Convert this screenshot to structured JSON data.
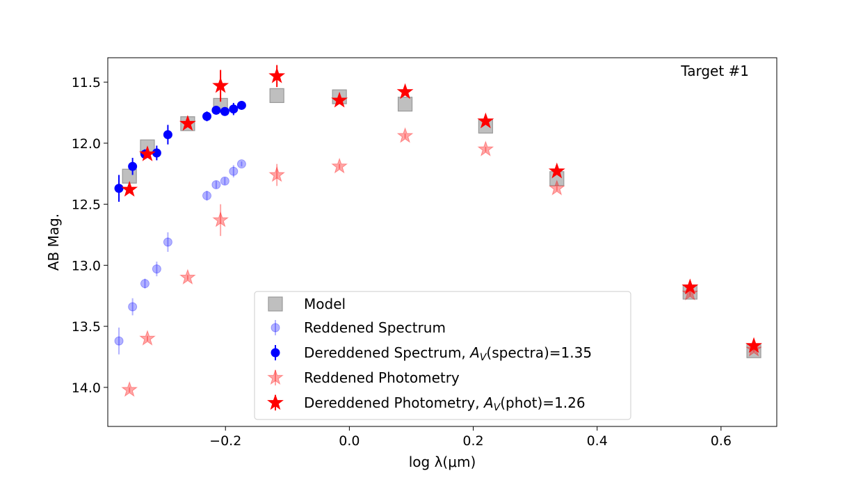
{
  "chart_data": {
    "type": "scatter",
    "annotation": "Target #1",
    "xlabel": "log λ(μm)",
    "ylabel": "AB Mag.",
    "xlim": [
      -0.39,
      0.69
    ],
    "ylim": [
      14.32,
      11.3
    ],
    "y_inverted": true,
    "xticks": [
      -0.2,
      0.0,
      0.2,
      0.4,
      0.6
    ],
    "xtick_labels": [
      "−0.2",
      "0.0",
      "0.2",
      "0.4",
      "0.6"
    ],
    "yticks": [
      11.5,
      12.0,
      12.5,
      13.0,
      13.5,
      14.0
    ],
    "ytick_labels": [
      "11.5",
      "12.0",
      "12.5",
      "13.0",
      "13.5",
      "14.0"
    ],
    "legend_position": "lower-center",
    "series": [
      {
        "name": "Model",
        "legend_label": "Model",
        "marker": "square",
        "color": "#999999",
        "points": [
          {
            "x": -0.355,
            "y": 12.27
          },
          {
            "x": -0.326,
            "y": 12.03
          },
          {
            "x": -0.261,
            "y": 11.84
          },
          {
            "x": -0.208,
            "y": 11.69
          },
          {
            "x": -0.117,
            "y": 11.61
          },
          {
            "x": -0.016,
            "y": 11.62
          },
          {
            "x": 0.09,
            "y": 11.68
          },
          {
            "x": 0.22,
            "y": 11.86
          },
          {
            "x": 0.335,
            "y": 12.29
          },
          {
            "x": 0.55,
            "y": 13.22
          },
          {
            "x": 0.653,
            "y": 13.7
          }
        ]
      },
      {
        "name": "Reddened Spectrum",
        "legend_label": "Reddened Spectrum",
        "marker": "circle",
        "color": "#0000ff",
        "alpha": 0.3,
        "points": [
          {
            "x": -0.372,
            "y": 13.62,
            "err": 0.11
          },
          {
            "x": -0.35,
            "y": 13.34,
            "err": 0.07
          },
          {
            "x": -0.33,
            "y": 13.15,
            "err": 0.04
          },
          {
            "x": -0.311,
            "y": 13.03,
            "err": 0.06
          },
          {
            "x": -0.293,
            "y": 12.81,
            "err": 0.08
          },
          {
            "x": -0.23,
            "y": 12.43,
            "err": 0.04
          },
          {
            "x": -0.215,
            "y": 12.34,
            "err": 0.03
          },
          {
            "x": -0.201,
            "y": 12.31,
            "err": 0.03
          },
          {
            "x": -0.187,
            "y": 12.23,
            "err": 0.05
          },
          {
            "x": -0.174,
            "y": 12.17,
            "err": 0.02
          }
        ]
      },
      {
        "name": "Dereddened Spectrum",
        "legend_label": "Dereddened Spectrum, ",
        "legend_math_sub": "V",
        "legend_suffix": "(spectra)=1.35",
        "marker": "circle",
        "color": "#0000ff",
        "alpha": 1.0,
        "points": [
          {
            "x": -0.372,
            "y": 12.37,
            "err": 0.11
          },
          {
            "x": -0.35,
            "y": 12.19,
            "err": 0.07
          },
          {
            "x": -0.33,
            "y": 12.09,
            "err": 0.04
          },
          {
            "x": -0.311,
            "y": 12.08,
            "err": 0.06
          },
          {
            "x": -0.293,
            "y": 11.93,
            "err": 0.08
          },
          {
            "x": -0.23,
            "y": 11.78,
            "err": 0.04
          },
          {
            "x": -0.215,
            "y": 11.73,
            "err": 0.03
          },
          {
            "x": -0.201,
            "y": 11.74,
            "err": 0.03
          },
          {
            "x": -0.187,
            "y": 11.72,
            "err": 0.05
          },
          {
            "x": -0.174,
            "y": 11.69,
            "err": 0.02
          }
        ]
      },
      {
        "name": "Reddened Photometry",
        "legend_label": "Reddened Photometry",
        "marker": "star",
        "color": "#ff0000",
        "alpha": 0.35,
        "points": [
          {
            "x": -0.355,
            "y": 14.02,
            "err": 0.02
          },
          {
            "x": -0.326,
            "y": 13.6,
            "err": 0.02
          },
          {
            "x": -0.261,
            "y": 13.1,
            "err": 0.02
          },
          {
            "x": -0.208,
            "y": 12.63,
            "err": 0.13
          },
          {
            "x": -0.117,
            "y": 12.26,
            "err": 0.09
          },
          {
            "x": -0.016,
            "y": 12.19,
            "err": 0.02
          },
          {
            "x": 0.09,
            "y": 11.94,
            "err": 0.02
          },
          {
            "x": 0.22,
            "y": 12.05,
            "err": 0.02
          },
          {
            "x": 0.335,
            "y": 12.37,
            "err": 0.02
          },
          {
            "x": 0.55,
            "y": 13.23,
            "err": 0.02
          },
          {
            "x": 0.653,
            "y": 13.69,
            "err": 0.02
          }
        ]
      },
      {
        "name": "Dereddened Photometry",
        "legend_label": "Dereddened Photometry, ",
        "legend_math_sub": "V",
        "legend_suffix": "(phot)=1.26",
        "marker": "star",
        "color": "#ff0000",
        "alpha": 1.0,
        "points": [
          {
            "x": -0.355,
            "y": 12.38,
            "err": 0.02
          },
          {
            "x": -0.326,
            "y": 12.09,
            "err": 0.02
          },
          {
            "x": -0.261,
            "y": 11.84,
            "err": 0.02
          },
          {
            "x": -0.208,
            "y": 11.53,
            "err": 0.13
          },
          {
            "x": -0.117,
            "y": 11.45,
            "err": 0.09
          },
          {
            "x": -0.016,
            "y": 11.65,
            "err": 0.02
          },
          {
            "x": 0.09,
            "y": 11.58,
            "err": 0.02
          },
          {
            "x": 0.22,
            "y": 11.82,
            "err": 0.02
          },
          {
            "x": 0.335,
            "y": 12.23,
            "err": 0.02
          },
          {
            "x": 0.55,
            "y": 13.18,
            "err": 0.02
          },
          {
            "x": 0.653,
            "y": 13.66,
            "err": 0.02
          }
        ]
      }
    ]
  }
}
